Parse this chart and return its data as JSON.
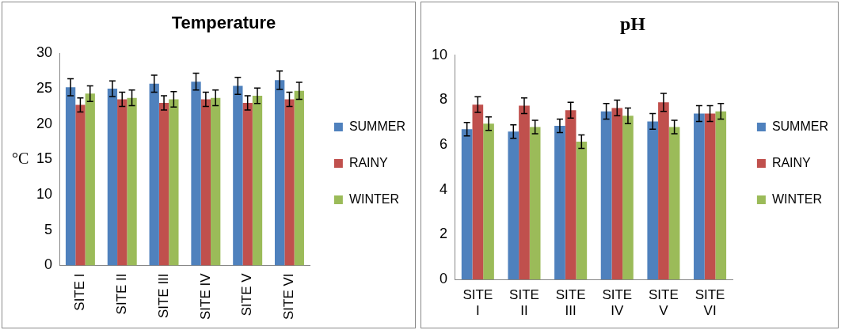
{
  "chart_data": [
    {
      "type": "bar",
      "title": "Temperature",
      "ylabel": "°C",
      "categories": [
        "SITE I",
        "SITE II",
        "SITE III",
        "SITE IV",
        "SITE V",
        "SITE VI"
      ],
      "ylim": [
        0,
        30
      ],
      "yticks": [
        0,
        5,
        10,
        15,
        20,
        25,
        30
      ],
      "grid": false,
      "legend": "right",
      "series": [
        {
          "name": "SUMMER",
          "color": "#4f81bd",
          "values": [
            25.2,
            25,
            25.7,
            26,
            25.4,
            26.2
          ],
          "errors": [
            1.2,
            1.1,
            1.2,
            1.2,
            1.2,
            1.3
          ]
        },
        {
          "name": "RAINY",
          "color": "#c0504d",
          "values": [
            22.7,
            23.5,
            23,
            23.5,
            23,
            23.5
          ],
          "errors": [
            1,
            1,
            1,
            1,
            1,
            1
          ]
        },
        {
          "name": "WINTER",
          "color": "#9bbb59",
          "values": [
            24.3,
            23.7,
            23.5,
            23.7,
            24,
            24.7
          ],
          "errors": [
            1.1,
            1.1,
            1.1,
            1.1,
            1.1,
            1.2
          ]
        }
      ]
    },
    {
      "type": "bar",
      "title": "pH",
      "categories": [
        "SITE I",
        "SITE II",
        "SITE III",
        "SITE IV",
        "SITE V",
        "SITE VI"
      ],
      "ylim": [
        0,
        10
      ],
      "yticks": [
        0,
        2,
        4,
        6,
        8,
        10
      ],
      "grid": false,
      "legend": "right",
      "series": [
        {
          "name": "SUMMER",
          "color": "#4f81bd",
          "values": [
            6.7,
            6.6,
            6.85,
            7.5,
            7.05,
            7.4
          ],
          "errors": [
            0.3,
            0.3,
            0.3,
            0.35,
            0.35,
            0.35
          ]
        },
        {
          "name": "RAINY",
          "color": "#c0504d",
          "values": [
            7.8,
            7.75,
            7.55,
            7.65,
            7.9,
            7.4
          ],
          "errors": [
            0.35,
            0.35,
            0.35,
            0.35,
            0.4,
            0.35
          ]
        },
        {
          "name": "WINTER",
          "color": "#9bbb59",
          "values": [
            6.95,
            6.8,
            6.15,
            7.3,
            6.8,
            7.5
          ],
          "errors": [
            0.3,
            0.3,
            0.3,
            0.35,
            0.3,
            0.35
          ]
        }
      ]
    }
  ]
}
